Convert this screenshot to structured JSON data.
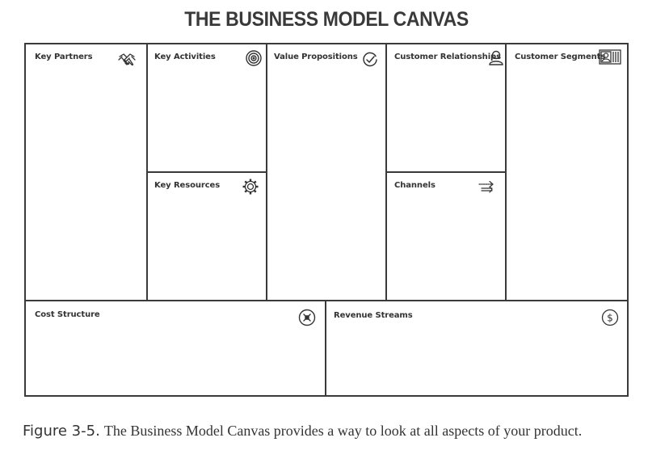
{
  "title": "THE BUSINESS MODEL CANVAS",
  "blocks": {
    "key_partners": {
      "label": "Key Partners",
      "icon": "handshake-icon"
    },
    "key_activities": {
      "label": "Key Activities",
      "icon": "target-icon"
    },
    "key_resources": {
      "label": "Key Resources",
      "icon": "gear-icon"
    },
    "value_propositions": {
      "label": "Value Propositions",
      "icon": "check-badge-icon"
    },
    "customer_relationships": {
      "label": "Customer Relationships",
      "icon": "person-icon"
    },
    "channels": {
      "label": "Channels",
      "icon": "arrows-icon"
    },
    "customer_segments": {
      "label": "Customer Segments",
      "icon": "id-card-icon"
    },
    "cost_structure": {
      "label": "Cost Structure",
      "icon": "cost-tag-icon"
    },
    "revenue_streams": {
      "label": "Revenue Streams",
      "icon": "dollar-coin-icon"
    }
  },
  "caption": {
    "figure": "Figure 3-5.",
    "text": "The Business Model Canvas provides a way to look at all aspects of your product."
  }
}
